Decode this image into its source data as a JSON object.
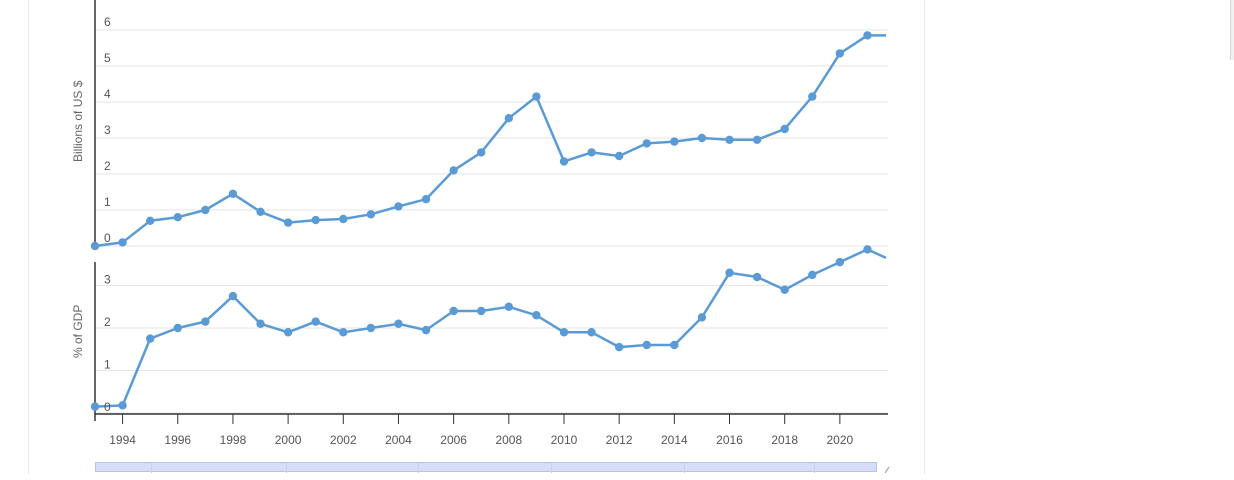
{
  "chart_data": [
    {
      "type": "line",
      "ylabel": "Billions of US $",
      "xlabel": "",
      "title": "",
      "ylim": [
        0,
        6.3
      ],
      "yticks": [
        0,
        1,
        2,
        3,
        4,
        5,
        6
      ],
      "grid": true,
      "color": "#5b9bd5",
      "x": [
        1993,
        1994,
        1995,
        1996,
        1997,
        1998,
        1999,
        2000,
        2001,
        2002,
        2003,
        2004,
        2005,
        2006,
        2007,
        2008,
        2009,
        2010,
        2011,
        2012,
        2013,
        2014,
        2015,
        2016,
        2017,
        2018,
        2019,
        2020,
        2021,
        2022
      ],
      "values": [
        0.0,
        0.1,
        0.7,
        0.8,
        1.0,
        1.45,
        0.95,
        0.65,
        0.72,
        0.75,
        0.88,
        1.1,
        1.3,
        2.1,
        2.6,
        3.55,
        4.15,
        2.35,
        2.6,
        2.5,
        2.85,
        2.9,
        3.0,
        2.95,
        2.95,
        3.25,
        4.15,
        5.35,
        5.85,
        5.85
      ]
    },
    {
      "type": "line",
      "ylabel": "% of GDP",
      "xlabel": "",
      "title": "",
      "ylim": [
        0,
        3.7
      ],
      "yticks": [
        0,
        1,
        2,
        3
      ],
      "grid": true,
      "color": "#5b9bd5",
      "x": [
        1993,
        1994,
        1995,
        1996,
        1997,
        1998,
        1999,
        2000,
        2001,
        2002,
        2003,
        2004,
        2005,
        2006,
        2007,
        2008,
        2009,
        2010,
        2011,
        2012,
        2013,
        2014,
        2015,
        2016,
        2017,
        2018,
        2019,
        2020,
        2021,
        2022
      ],
      "values": [
        0.15,
        0.18,
        1.75,
        2.0,
        2.15,
        2.75,
        2.1,
        1.9,
        2.15,
        1.9,
        2.0,
        2.1,
        1.95,
        2.4,
        2.4,
        2.5,
        2.3,
        1.9,
        1.9,
        1.55,
        1.6,
        1.6,
        2.25,
        3.3,
        3.2,
        2.9,
        3.25,
        3.55,
        3.85,
        3.65
      ]
    }
  ],
  "x_axis": {
    "tick_labels": [
      "1994",
      "1996",
      "1998",
      "2000",
      "2002",
      "2004",
      "2006",
      "2008",
      "2010",
      "2012",
      "2014",
      "2016",
      "2018",
      "2020"
    ]
  },
  "navigator": {
    "handle_icon": "resize-handle-icon"
  }
}
